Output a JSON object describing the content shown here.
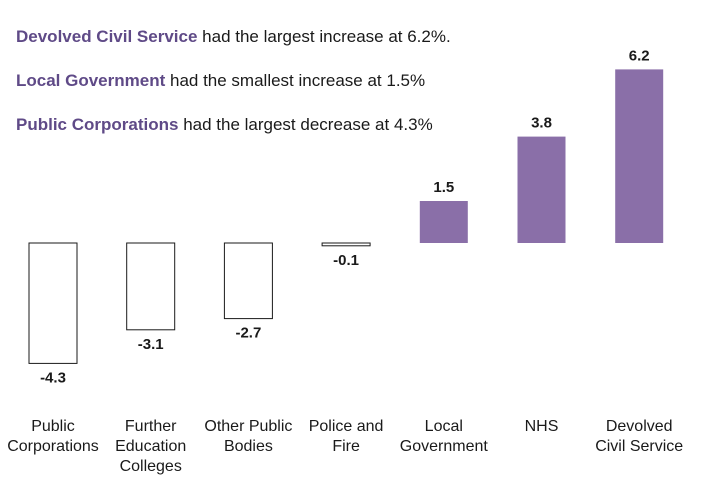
{
  "annotations": [
    {
      "highlight": "Devolved Civil Service",
      "text": " had the largest increase at 6.2%."
    },
    {
      "highlight": "Local Government",
      "text": " had the smallest increase at 1.5%"
    },
    {
      "highlight": "Public Corporations",
      "text": " had the largest decrease at 4.3%"
    }
  ],
  "colors": {
    "highlight_text": "#5f4a87",
    "positive_bar": "#8a6fa8",
    "negative_bar_fill": "#ffffff",
    "negative_bar_stroke": "#1a1a1a"
  },
  "chart_data": {
    "type": "bar",
    "title": "",
    "xlabel": "",
    "ylabel": "",
    "categories": [
      [
        "Public",
        "Corporations"
      ],
      [
        "Further",
        "Education",
        "Colleges"
      ],
      [
        "Other Public",
        "Bodies"
      ],
      [
        "Police and",
        "Fire"
      ],
      [
        "Local",
        "Government"
      ],
      [
        "NHS"
      ],
      [
        "Devolved",
        "Civil Service"
      ]
    ],
    "values": [
      -4.3,
      -3.1,
      -2.7,
      -0.1,
      1.5,
      3.8,
      6.2
    ],
    "value_labels": [
      "-4.3",
      "-3.1",
      "-2.7",
      "-0.1",
      "1.5",
      "3.8",
      "6.2"
    ],
    "ylim": [
      -4.3,
      6.2
    ],
    "grid": false,
    "legend": "none"
  }
}
